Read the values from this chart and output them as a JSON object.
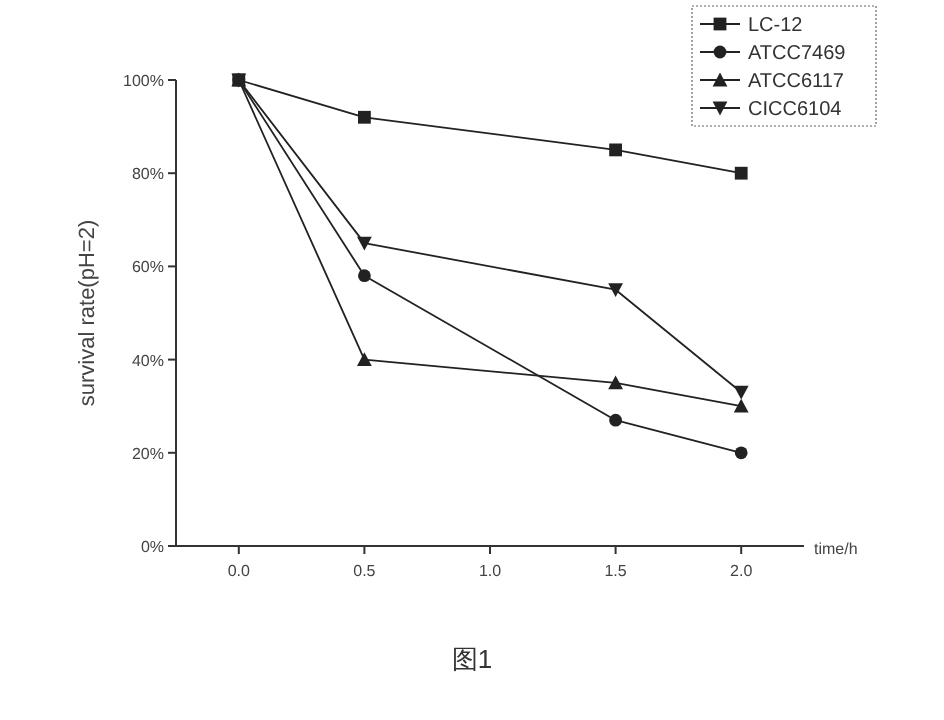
{
  "chart_data": {
    "type": "line",
    "xlabel": "time/h",
    "ylabel": "survival rate(pH=2)",
    "x": [
      0,
      0.5,
      1.5,
      2.0
    ],
    "series": [
      {
        "name": "LC-12",
        "color": "#222222",
        "marker": "square",
        "values": [
          100,
          92,
          85,
          80
        ]
      },
      {
        "name": "ATCC7469",
        "color": "#222222",
        "marker": "circle",
        "values": [
          100,
          58,
          27,
          20
        ]
      },
      {
        "name": "ATCC6117",
        "color": "#222222",
        "marker": "triangle",
        "values": [
          100,
          40,
          35,
          30
        ]
      },
      {
        "name": "CICC6104",
        "color": "#222222",
        "marker": "triangle-down",
        "values": [
          100,
          65,
          55,
          33
        ]
      }
    ],
    "xlim": [
      -0.25,
      2.25
    ],
    "xticks": [
      {
        "value": 0,
        "label": "0.0"
      },
      0.5,
      {
        "value": 1,
        "label": "1.0"
      },
      1.5,
      {
        "value": 2,
        "label": "2.0"
      }
    ],
    "ylim": [
      0,
      100
    ],
    "yticks": [
      {
        "value": 0,
        "label": "0%"
      },
      {
        "value": 20,
        "label": "20%"
      },
      {
        "value": 40,
        "label": "40%"
      },
      {
        "value": 60,
        "label": "60%"
      },
      {
        "value": 80,
        "label": "80%"
      },
      {
        "value": 100,
        "label": "100%"
      }
    ],
    "grid": false,
    "legend": "top right",
    "line_style": "solid",
    "annotations": [
      "图1"
    ]
  }
}
